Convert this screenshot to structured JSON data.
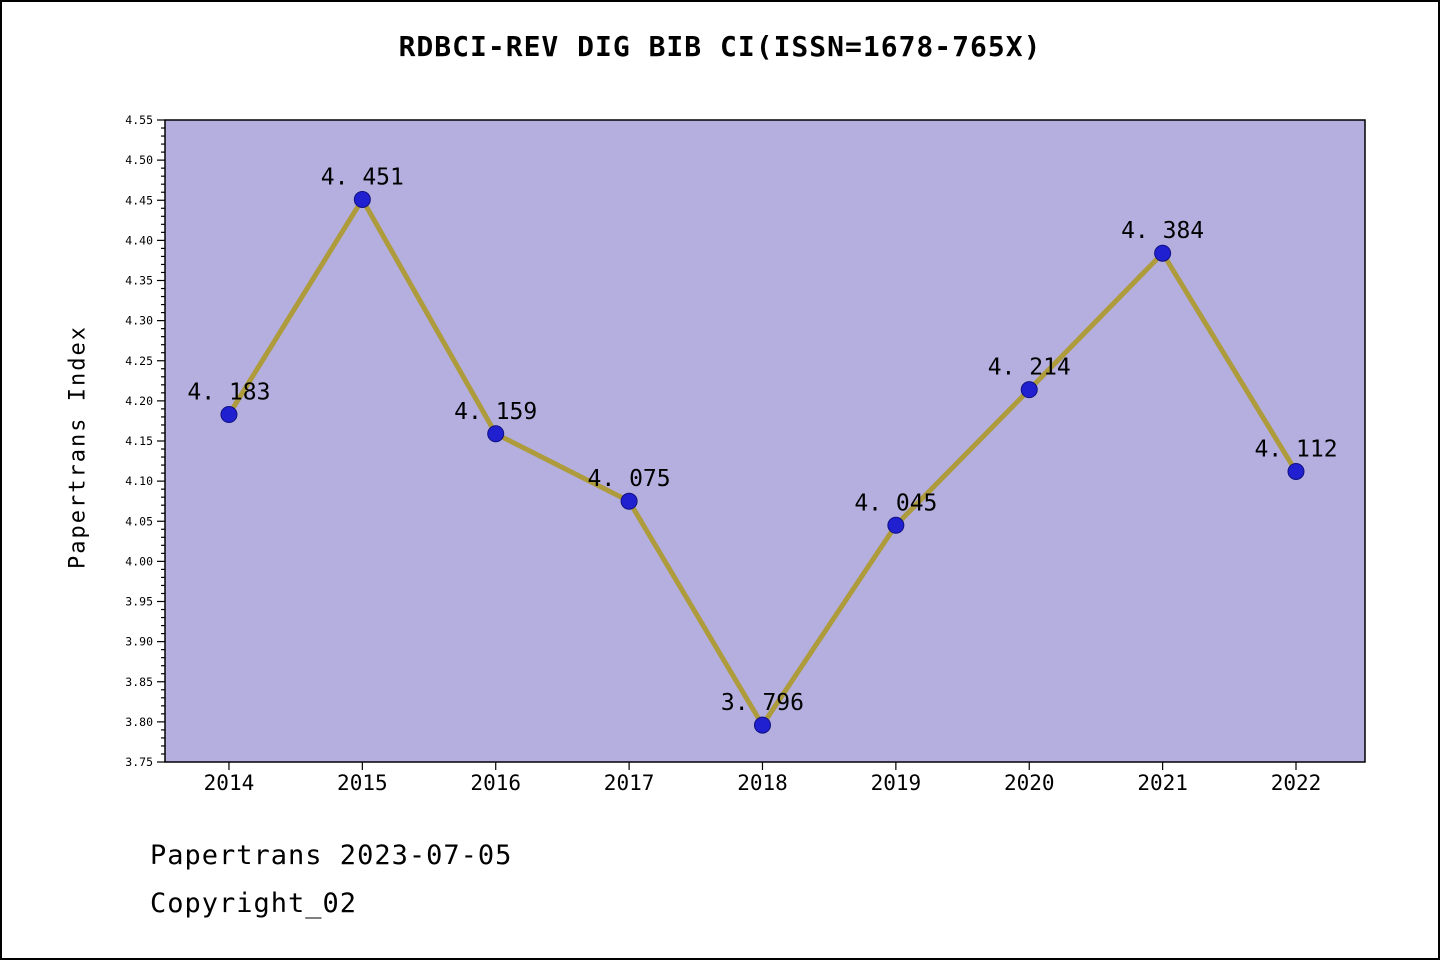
{
  "title": "RDBCI-REV DIG BIB CI(ISSN=1678-765X)",
  "ylabel": "Papertrans Index",
  "footer": {
    "line1": "Papertrans 2023-07-05",
    "line2": "Copyright_02"
  },
  "chart_data": {
    "type": "line",
    "title": "RDBCI-REV DIG BIB CI(ISSN=1678-765X)",
    "xlabel": "",
    "ylabel": "Papertrans Index",
    "categories": [
      "2014",
      "2015",
      "2016",
      "2017",
      "2018",
      "2019",
      "2020",
      "2021",
      "2022"
    ],
    "values": [
      4.183,
      4.451,
      4.159,
      4.075,
      3.796,
      4.045,
      4.214,
      4.384,
      4.112
    ],
    "point_labels": [
      "4. 183",
      "4. 451",
      "4. 159",
      "4. 075",
      "3. 796",
      "4. 045",
      "4. 214",
      "4. 384",
      "4. 112"
    ],
    "ylim": [
      3.75,
      4.55
    ],
    "ytick_step": 0.05,
    "yminor_step": 0.01,
    "grid": false,
    "legend": "none",
    "colors": {
      "plot_bg": "#b5afe0",
      "line": "#ad9b3c",
      "marker_fill": "#2020d0",
      "marker_edge": "#101080",
      "axis": "#000000",
      "text": "#000000"
    }
  }
}
